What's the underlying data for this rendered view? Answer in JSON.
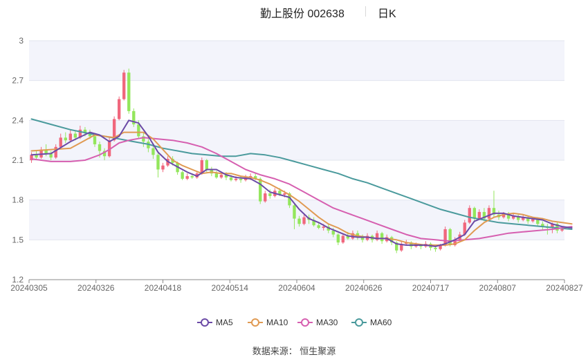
{
  "header": {
    "title": "勤上股份 002638",
    "period": "日K"
  },
  "source": "数据来源： 恒生聚源",
  "colors": {
    "up": "#f0677d",
    "down": "#93e65c",
    "band": "#f3f4fb",
    "grid": "#e2e4ee",
    "axis": "#888888",
    "MA5": "#6b4aa6",
    "MA10": "#e09a52",
    "MA30": "#d65fb0",
    "MA60": "#4a9a9c"
  },
  "chart_data": {
    "type": "candlestick",
    "x_tick_labels": [
      "20240305",
      "20240326",
      "20240418",
      "20240514",
      "20240604",
      "20240626",
      "20240717",
      "20240807",
      "20240827"
    ],
    "y_ticks": [
      1.2,
      1.5,
      1.8,
      2.1,
      2.4,
      2.7,
      3
    ],
    "ylim": [
      1.2,
      3.0
    ],
    "legend": [
      "MA5",
      "MA10",
      "MA30",
      "MA60"
    ],
    "legend_position": "bottom-center",
    "grid": true,
    "candles": [
      [
        2.1,
        2.14,
        2.16,
        2.08
      ],
      [
        2.14,
        2.12,
        2.17,
        2.1
      ],
      [
        2.12,
        2.18,
        2.2,
        2.11
      ],
      [
        2.18,
        2.15,
        2.22,
        2.13
      ],
      [
        2.15,
        2.12,
        2.17,
        2.1
      ],
      [
        2.12,
        2.2,
        2.22,
        2.11
      ],
      [
        2.2,
        2.27,
        2.3,
        2.19
      ],
      [
        2.27,
        2.25,
        2.31,
        2.23
      ],
      [
        2.25,
        2.3,
        2.33,
        2.24
      ],
      [
        2.3,
        2.27,
        2.32,
        2.25
      ],
      [
        2.27,
        2.33,
        2.36,
        2.26
      ],
      [
        2.33,
        2.31,
        2.35,
        2.28
      ],
      [
        2.31,
        2.28,
        2.33,
        2.26
      ],
      [
        2.28,
        2.22,
        2.3,
        2.2
      ],
      [
        2.22,
        2.17,
        2.24,
        2.12
      ],
      [
        2.17,
        2.13,
        2.19,
        2.1
      ],
      [
        2.13,
        2.25,
        2.27,
        2.12
      ],
      [
        2.25,
        2.41,
        2.43,
        2.24
      ],
      [
        2.41,
        2.56,
        2.58,
        2.4
      ],
      [
        2.56,
        2.76,
        2.78,
        2.55
      ],
      [
        2.76,
        2.47,
        2.79,
        2.45
      ],
      [
        2.47,
        2.37,
        2.49,
        2.35
      ],
      [
        2.37,
        2.28,
        2.4,
        2.26
      ],
      [
        2.28,
        2.24,
        2.31,
        2.2
      ],
      [
        2.24,
        2.19,
        2.26,
        2.16
      ],
      [
        2.19,
        2.14,
        2.21,
        2.11
      ],
      [
        2.14,
        2.03,
        2.16,
        1.97
      ],
      [
        2.03,
        2.06,
        2.08,
        2.01
      ],
      [
        2.06,
        2.11,
        2.13,
        2.05
      ],
      [
        2.11,
        2.08,
        2.13,
        2.06
      ],
      [
        2.08,
        2.01,
        2.09,
        1.99
      ],
      [
        2.01,
        1.96,
        2.02,
        1.95
      ],
      [
        1.96,
        1.98,
        2.0,
        1.95
      ],
      [
        1.98,
        1.97,
        2.0,
        1.96
      ],
      [
        1.97,
        2.0,
        2.01,
        1.96
      ],
      [
        2.0,
        2.1,
        2.12,
        1.99
      ],
      [
        2.1,
        2.03,
        2.11,
        2.01
      ],
      [
        2.03,
        2.0,
        2.05,
        1.98
      ],
      [
        2.0,
        1.97,
        2.02,
        1.96
      ],
      [
        1.97,
        1.99,
        2.01,
        1.96
      ],
      [
        1.99,
        1.97,
        2.01,
        1.95
      ],
      [
        1.97,
        1.95,
        1.99,
        1.94
      ],
      [
        1.95,
        1.96,
        1.98,
        1.94
      ],
      [
        1.96,
        1.95,
        1.98,
        1.93
      ],
      [
        1.95,
        1.97,
        1.99,
        1.94
      ],
      [
        1.97,
        1.98,
        2.0,
        1.95
      ],
      [
        1.98,
        1.96,
        2.0,
        1.95
      ],
      [
        1.96,
        1.79,
        1.97,
        1.77
      ],
      [
        1.79,
        1.85,
        1.87,
        1.78
      ],
      [
        1.85,
        1.83,
        1.88,
        1.81
      ],
      [
        1.83,
        1.87,
        1.89,
        1.82
      ],
      [
        1.87,
        1.84,
        1.89,
        1.83
      ],
      [
        1.84,
        1.85,
        1.87,
        1.82
      ],
      [
        1.85,
        1.76,
        1.86,
        1.74
      ],
      [
        1.76,
        1.66,
        1.77,
        1.58
      ],
      [
        1.66,
        1.62,
        1.68,
        1.6
      ],
      [
        1.62,
        1.67,
        1.69,
        1.61
      ],
      [
        1.67,
        1.65,
        1.69,
        1.62
      ],
      [
        1.65,
        1.61,
        1.67,
        1.6
      ],
      [
        1.61,
        1.59,
        1.63,
        1.58
      ],
      [
        1.59,
        1.6,
        1.62,
        1.57
      ],
      [
        1.6,
        1.57,
        1.62,
        1.55
      ],
      [
        1.57,
        1.54,
        1.59,
        1.52
      ],
      [
        1.54,
        1.48,
        1.55,
        1.46
      ],
      [
        1.48,
        1.53,
        1.55,
        1.47
      ],
      [
        1.53,
        1.51,
        1.56,
        1.5
      ],
      [
        1.51,
        1.55,
        1.57,
        1.5
      ],
      [
        1.55,
        1.52,
        1.57,
        1.5
      ],
      [
        1.52,
        1.5,
        1.54,
        1.48
      ],
      [
        1.5,
        1.53,
        1.55,
        1.49
      ],
      [
        1.53,
        1.5,
        1.54,
        1.48
      ],
      [
        1.5,
        1.55,
        1.57,
        1.49
      ],
      [
        1.55,
        1.49,
        1.56,
        1.47
      ],
      [
        1.49,
        1.52,
        1.54,
        1.48
      ],
      [
        1.52,
        1.48,
        1.53,
        1.46
      ],
      [
        1.48,
        1.42,
        1.49,
        1.4
      ],
      [
        1.42,
        1.47,
        1.49,
        1.41
      ],
      [
        1.47,
        1.48,
        1.5,
        1.46
      ],
      [
        1.48,
        1.45,
        1.49,
        1.43
      ],
      [
        1.45,
        1.46,
        1.48,
        1.44
      ],
      [
        1.46,
        1.45,
        1.47,
        1.43
      ],
      [
        1.45,
        1.47,
        1.49,
        1.44
      ],
      [
        1.47,
        1.44,
        1.48,
        1.42
      ],
      [
        1.44,
        1.43,
        1.46,
        1.41
      ],
      [
        1.43,
        1.46,
        1.47,
        1.42
      ],
      [
        1.46,
        1.58,
        1.6,
        1.45
      ],
      [
        1.58,
        1.46,
        1.59,
        1.45
      ],
      [
        1.46,
        1.5,
        1.52,
        1.45
      ],
      [
        1.5,
        1.54,
        1.56,
        1.49
      ],
      [
        1.54,
        1.63,
        1.65,
        1.53
      ],
      [
        1.63,
        1.74,
        1.76,
        1.62
      ],
      [
        1.74,
        1.66,
        1.75,
        1.64
      ],
      [
        1.66,
        1.71,
        1.73,
        1.65
      ],
      [
        1.71,
        1.66,
        1.74,
        1.64
      ],
      [
        1.66,
        1.74,
        1.76,
        1.65
      ],
      [
        1.74,
        1.69,
        1.87,
        1.67
      ],
      [
        1.69,
        1.67,
        1.72,
        1.65
      ],
      [
        1.67,
        1.7,
        1.71,
        1.66
      ],
      [
        1.7,
        1.66,
        1.71,
        1.64
      ],
      [
        1.66,
        1.68,
        1.7,
        1.65
      ],
      [
        1.68,
        1.65,
        1.69,
        1.63
      ],
      [
        1.65,
        1.67,
        1.69,
        1.64
      ],
      [
        1.67,
        1.64,
        1.68,
        1.62
      ],
      [
        1.64,
        1.66,
        1.67,
        1.63
      ],
      [
        1.66,
        1.62,
        1.67,
        1.6
      ],
      [
        1.62,
        1.6,
        1.64,
        1.57
      ],
      [
        1.6,
        1.59,
        1.62,
        1.54
      ],
      [
        1.59,
        1.62,
        1.63,
        1.55
      ],
      [
        1.62,
        1.57,
        1.63,
        1.55
      ],
      [
        1.57,
        1.58,
        1.6,
        1.56
      ]
    ],
    "ma": {
      "MA5": [
        [
          0,
          2.14
        ],
        [
          4,
          2.15
        ],
        [
          8,
          2.24
        ],
        [
          12,
          2.31
        ],
        [
          14,
          2.29
        ],
        [
          16,
          2.24
        ],
        [
          18,
          2.28
        ],
        [
          20,
          2.4
        ],
        [
          22,
          2.38
        ],
        [
          24,
          2.28
        ],
        [
          26,
          2.16
        ],
        [
          28,
          2.09
        ],
        [
          30,
          2.05
        ],
        [
          32,
          2.01
        ],
        [
          34,
          1.98
        ],
        [
          36,
          2.03
        ],
        [
          38,
          2.03
        ],
        [
          40,
          1.99
        ],
        [
          42,
          1.97
        ],
        [
          45,
          1.96
        ],
        [
          47,
          1.92
        ],
        [
          49,
          1.86
        ],
        [
          51,
          1.84
        ],
        [
          53,
          1.82
        ],
        [
          55,
          1.73
        ],
        [
          57,
          1.66
        ],
        [
          59,
          1.63
        ],
        [
          61,
          1.59
        ],
        [
          63,
          1.56
        ],
        [
          65,
          1.53
        ],
        [
          67,
          1.52
        ],
        [
          69,
          1.52
        ],
        [
          71,
          1.51
        ],
        [
          73,
          1.51
        ],
        [
          75,
          1.47
        ],
        [
          77,
          1.46
        ],
        [
          79,
          1.46
        ],
        [
          81,
          1.46
        ],
        [
          83,
          1.45
        ],
        [
          85,
          1.47
        ],
        [
          87,
          1.5
        ],
        [
          89,
          1.54
        ],
        [
          91,
          1.64
        ],
        [
          93,
          1.67
        ],
        [
          95,
          1.7
        ],
        [
          97,
          1.7
        ],
        [
          99,
          1.68
        ],
        [
          101,
          1.67
        ],
        [
          103,
          1.66
        ],
        [
          105,
          1.65
        ],
        [
          107,
          1.62
        ],
        [
          109,
          1.6
        ],
        [
          111,
          1.59
        ]
      ],
      "MA10": [
        [
          0,
          2.17
        ],
        [
          4,
          2.18
        ],
        [
          8,
          2.19
        ],
        [
          11,
          2.25
        ],
        [
          13,
          2.29
        ],
        [
          15,
          2.28
        ],
        [
          17,
          2.27
        ],
        [
          19,
          2.31
        ],
        [
          21,
          2.31
        ],
        [
          23,
          2.31
        ],
        [
          25,
          2.26
        ],
        [
          27,
          2.18
        ],
        [
          29,
          2.1
        ],
        [
          31,
          2.06
        ],
        [
          33,
          2.03
        ],
        [
          35,
          2.0
        ],
        [
          37,
          2.01
        ],
        [
          39,
          2.0
        ],
        [
          41,
          2.0
        ],
        [
          43,
          1.98
        ],
        [
          45,
          1.97
        ],
        [
          47,
          1.95
        ],
        [
          49,
          1.92
        ],
        [
          51,
          1.88
        ],
        [
          53,
          1.84
        ],
        [
          55,
          1.79
        ],
        [
          57,
          1.73
        ],
        [
          59,
          1.67
        ],
        [
          61,
          1.62
        ],
        [
          63,
          1.59
        ],
        [
          65,
          1.55
        ],
        [
          67,
          1.53
        ],
        [
          69,
          1.52
        ],
        [
          71,
          1.51
        ],
        [
          73,
          1.51
        ],
        [
          75,
          1.5
        ],
        [
          77,
          1.48
        ],
        [
          79,
          1.47
        ],
        [
          81,
          1.46
        ],
        [
          83,
          1.46
        ],
        [
          85,
          1.46
        ],
        [
          87,
          1.47
        ],
        [
          89,
          1.5
        ],
        [
          91,
          1.57
        ],
        [
          93,
          1.63
        ],
        [
          95,
          1.67
        ],
        [
          97,
          1.69
        ],
        [
          99,
          1.7
        ],
        [
          101,
          1.69
        ],
        [
          103,
          1.67
        ],
        [
          105,
          1.66
        ],
        [
          107,
          1.64
        ],
        [
          109,
          1.63
        ],
        [
          111,
          1.62
        ]
      ],
      "MA30": [
        [
          0,
          2.11
        ],
        [
          4,
          2.09
        ],
        [
          8,
          2.09
        ],
        [
          11,
          2.1
        ],
        [
          14,
          2.14
        ],
        [
          16,
          2.18
        ],
        [
          18,
          2.23
        ],
        [
          20,
          2.25
        ],
        [
          23,
          2.27
        ],
        [
          26,
          2.26
        ],
        [
          29,
          2.25
        ],
        [
          32,
          2.23
        ],
        [
          35,
          2.2
        ],
        [
          38,
          2.15
        ],
        [
          41,
          2.09
        ],
        [
          44,
          2.03
        ],
        [
          47,
          1.99
        ],
        [
          50,
          1.96
        ],
        [
          53,
          1.92
        ],
        [
          56,
          1.86
        ],
        [
          59,
          1.8
        ],
        [
          62,
          1.74
        ],
        [
          65,
          1.7
        ],
        [
          68,
          1.66
        ],
        [
          71,
          1.62
        ],
        [
          74,
          1.58
        ],
        [
          77,
          1.54
        ],
        [
          80,
          1.51
        ],
        [
          83,
          1.5
        ],
        [
          86,
          1.49
        ],
        [
          89,
          1.5
        ],
        [
          92,
          1.51
        ],
        [
          95,
          1.53
        ],
        [
          98,
          1.55
        ],
        [
          101,
          1.56
        ],
        [
          104,
          1.57
        ],
        [
          107,
          1.58
        ],
        [
          111,
          1.6
        ]
      ],
      "MA60": [
        [
          0,
          2.41
        ],
        [
          4,
          2.37
        ],
        [
          8,
          2.33
        ],
        [
          12,
          2.3
        ],
        [
          15,
          2.28
        ],
        [
          18,
          2.26
        ],
        [
          21,
          2.24
        ],
        [
          24,
          2.22
        ],
        [
          27,
          2.19
        ],
        [
          30,
          2.17
        ],
        [
          33,
          2.15
        ],
        [
          36,
          2.14
        ],
        [
          39,
          2.13
        ],
        [
          42,
          2.13
        ],
        [
          45,
          2.15
        ],
        [
          48,
          2.14
        ],
        [
          51,
          2.12
        ],
        [
          54,
          2.09
        ],
        [
          57,
          2.06
        ],
        [
          60,
          2.03
        ],
        [
          63,
          2.0
        ],
        [
          66,
          1.96
        ],
        [
          69,
          1.93
        ],
        [
          72,
          1.89
        ],
        [
          75,
          1.85
        ],
        [
          78,
          1.81
        ],
        [
          81,
          1.77
        ],
        [
          84,
          1.73
        ],
        [
          87,
          1.7
        ],
        [
          90,
          1.67
        ],
        [
          93,
          1.65
        ],
        [
          96,
          1.63
        ],
        [
          99,
          1.62
        ],
        [
          102,
          1.61
        ],
        [
          105,
          1.6
        ],
        [
          108,
          1.59
        ],
        [
          111,
          1.58
        ]
      ]
    }
  }
}
